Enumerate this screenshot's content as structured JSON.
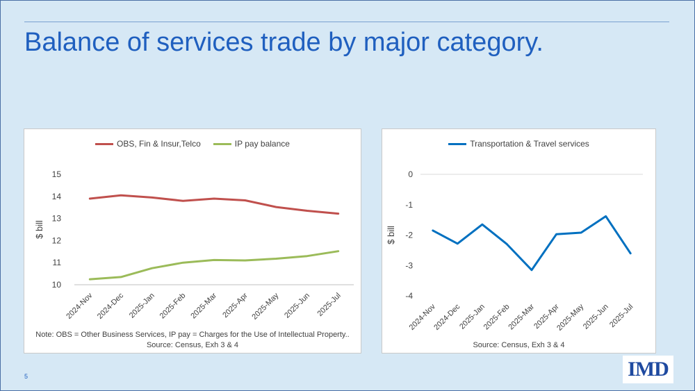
{
  "slide": {
    "title": "Balance of services trade by major category.",
    "page_number": "5",
    "logo_text": "IMD"
  },
  "chart_data": [
    {
      "type": "line",
      "categories": [
        "2024-Nov",
        "2024-Dec",
        "2025-Jan",
        "2025-Feb",
        "2025-Mar",
        "2025-Apr",
        "2025-May",
        "2025-Jun",
        "2025-Jul"
      ],
      "series": [
        {
          "name": "OBS, Fin & Insur,Telco",
          "color": "#c0504d",
          "values": [
            13.9,
            14.05,
            13.95,
            13.8,
            13.9,
            13.82,
            13.52,
            13.35,
            13.22
          ]
        },
        {
          "name": "IP pay balance",
          "color": "#9bbb59",
          "values": [
            10.25,
            10.35,
            10.75,
            11.0,
            11.12,
            11.1,
            11.18,
            11.3,
            11.52
          ]
        }
      ],
      "title": "",
      "xlabel": "",
      "ylabel": "$ bill",
      "ylim": [
        10,
        15
      ],
      "yticks": [
        10,
        11,
        12,
        13,
        14,
        15
      ],
      "legend": "top",
      "note": "Note: OBS = Other Business Services, IP pay = Charges for the Use of Intellectual Property.. Source: Census, Exh 3 & 4"
    },
    {
      "type": "line",
      "categories": [
        "2024-Nov",
        "2024-Dec",
        "2025-Jan",
        "2025-Feb",
        "2025-Mar",
        "2025-Apr",
        "2025-May",
        "2025-Jun",
        "2025-Jul"
      ],
      "series": [
        {
          "name": "Transportation & Travel services",
          "color": "#0070c0",
          "values": [
            -1.85,
            -2.28,
            -1.65,
            -2.3,
            -3.15,
            -1.97,
            -1.92,
            -1.38,
            -2.6
          ]
        }
      ],
      "title": "",
      "xlabel": "",
      "ylabel": "$ bill",
      "ylim": [
        -4,
        0
      ],
      "yticks": [
        -4,
        -3,
        -2,
        -1,
        0
      ],
      "gridlines": [
        0
      ],
      "legend": "top",
      "note": "Source: Census, Exh 3 & 4"
    }
  ]
}
